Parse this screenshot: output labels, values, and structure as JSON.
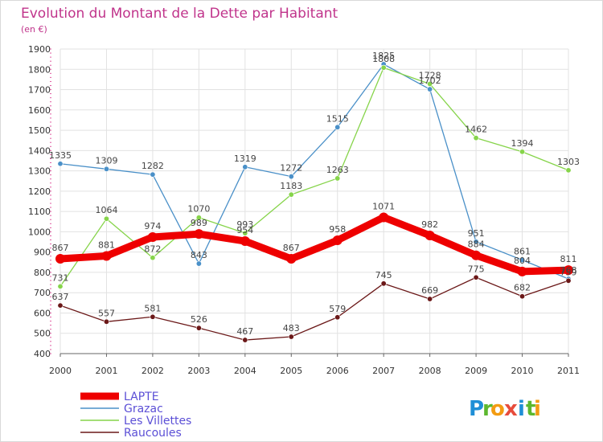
{
  "header": {
    "title": "Evolution du Montant de la Dette par Habitant",
    "subtitle": "(en €)"
  },
  "logo": {
    "letters": [
      "P",
      "r",
      "o",
      "x",
      "i",
      "t",
      "i"
    ],
    "colors": [
      "#1f8fd6",
      "#5cb82e",
      "#f39c12",
      "#e74c3c",
      "#1f8fd6",
      "#5cb82e",
      "#f39c12"
    ]
  },
  "chart_data": {
    "type": "line",
    "title": "Evolution du Montant de la Dette par Habitant",
    "subtitle": "(en €)",
    "xlabel": "",
    "ylabel": "",
    "ylim": [
      400,
      1900
    ],
    "yticks": [
      400,
      500,
      600,
      700,
      800,
      900,
      1000,
      1100,
      1200,
      1300,
      1400,
      1500,
      1600,
      1700,
      1800,
      1900
    ],
    "categories": [
      "2000",
      "2001",
      "2002",
      "2003",
      "2004",
      "2005",
      "2006",
      "2007",
      "2008",
      "2009",
      "2010",
      "2011"
    ],
    "grid": true,
    "legend_position": "bottom-left",
    "series": [
      {
        "name": "LAPTE",
        "color": "#ee0000",
        "values": [
          867,
          881,
          974,
          989,
          954,
          867,
          958,
          1071,
          982,
          884,
          804,
          811
        ]
      },
      {
        "name": "Grazac",
        "color": "#4a90c8",
        "values": [
          1335,
          1309,
          1282,
          843,
          1319,
          1272,
          1515,
          1825,
          1702,
          951,
          861,
          768
        ]
      },
      {
        "name": "Les Villettes",
        "color": "#86d44a",
        "values": [
          731,
          1064,
          872,
          1070,
          993,
          1183,
          1263,
          1808,
          1728,
          1462,
          1394,
          1303
        ]
      },
      {
        "name": "Raucoules",
        "color": "#6b1818",
        "values": [
          637,
          557,
          581,
          526,
          467,
          483,
          579,
          745,
          669,
          775,
          682,
          759
        ]
      }
    ]
  }
}
